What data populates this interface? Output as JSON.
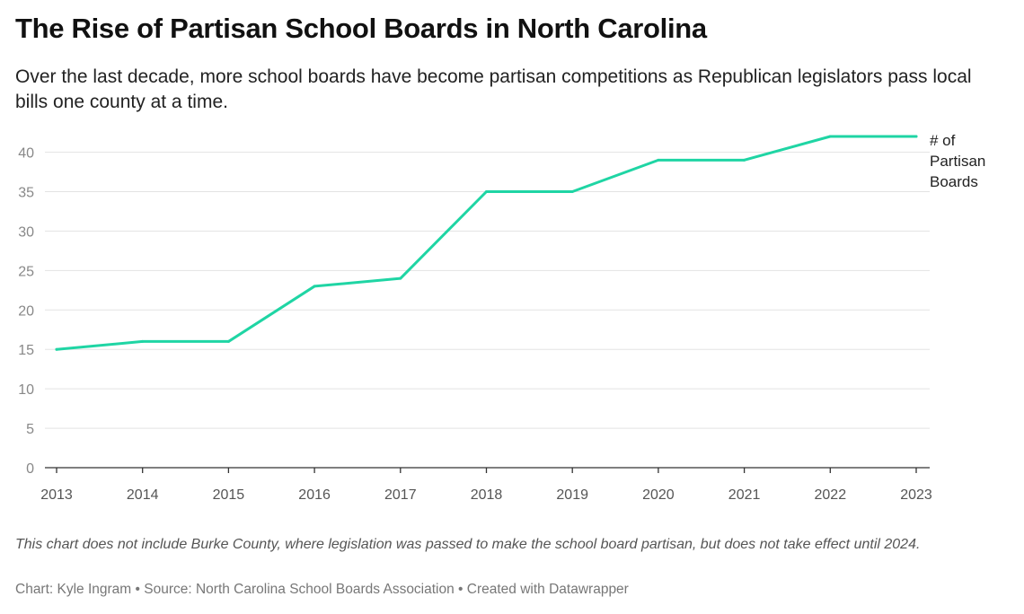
{
  "header": {
    "title": "The Rise of Partisan School Boards in North Carolina",
    "subtitle": "Over the last decade, more school boards have become partisan competitions as Republican legislators pass local bills one county at a time."
  },
  "footer": {
    "note": "This chart does not include Burke County, where legislation was passed to make the school board partisan, but does not take effect until 2024.",
    "byline": "Chart: Kyle Ingram • Source: North Carolina School Boards Association • Created with Datawrapper"
  },
  "colors": {
    "line": "#1fd5a4",
    "grid": "#e3e3e3",
    "axis": "#333333"
  },
  "chart_data": {
    "type": "line",
    "title": "The Rise of Partisan School Boards in North Carolina",
    "x": [
      "2013",
      "2014",
      "2015",
      "2016",
      "2017",
      "2018",
      "2019",
      "2020",
      "2021",
      "2022",
      "2023"
    ],
    "y_ticks": [
      "0",
      "5",
      "10",
      "15",
      "20",
      "25",
      "30",
      "35",
      "40"
    ],
    "ylim": [
      0,
      42
    ],
    "grid": true,
    "series": [
      {
        "name_lines": [
          "# of",
          "Partisan",
          "Boards"
        ],
        "values": [
          15,
          16,
          16,
          23,
          24,
          35,
          35,
          39,
          39,
          42,
          42
        ]
      }
    ]
  }
}
